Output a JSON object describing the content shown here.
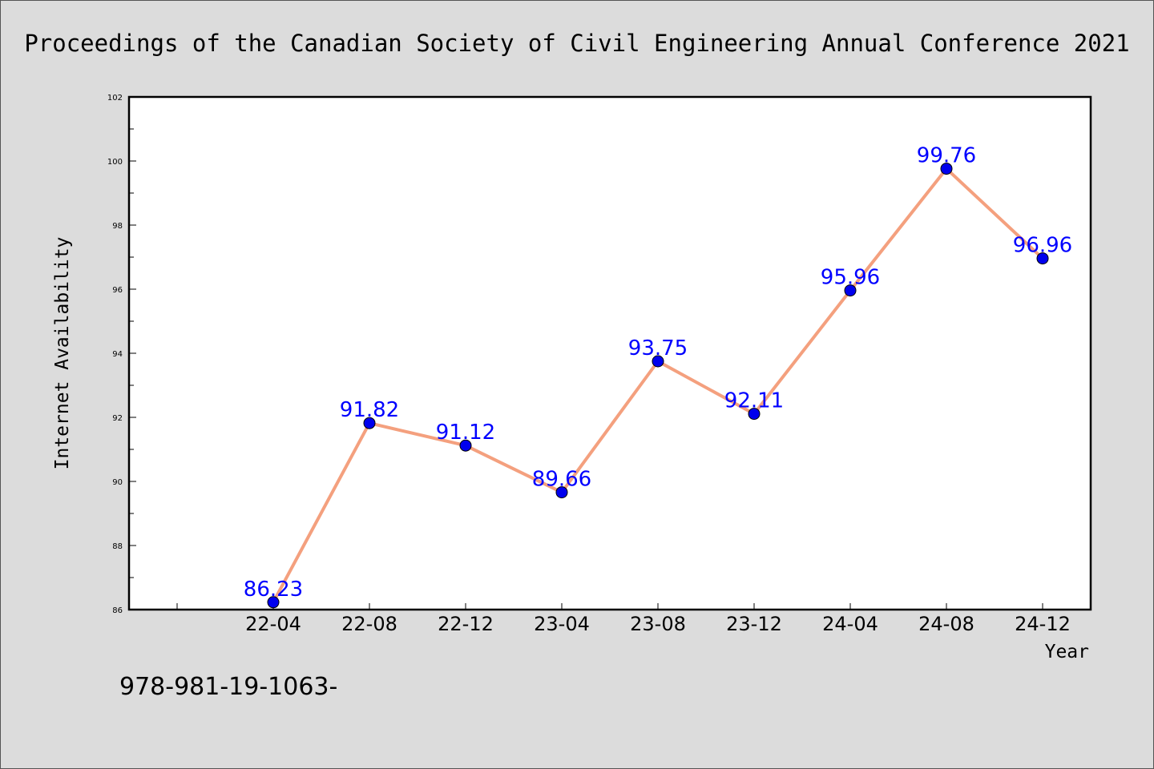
{
  "chart_data": {
    "type": "line",
    "title": "Proceedings of the Canadian Society of Civil Engineering Annual Conference 2021",
    "xlabel": "Year",
    "ylabel": "Internet Availability",
    "categories": [
      "22-04",
      "22-08",
      "22-12",
      "23-04",
      "23-08",
      "23-12",
      "24-04",
      "24-08",
      "24-12"
    ],
    "series": [
      {
        "values": [
          86.23,
          91.82,
          91.12,
          89.66,
          93.75,
          92.11,
          95.96,
          99.76,
          96.96
        ],
        "labels": [
          "86.23",
          "91.82",
          "91.12",
          "89.66",
          "93.75",
          "92.11",
          "95.96",
          "99.76",
          "96.96"
        ],
        "line_color": "#f4a07e",
        "marker_color": "#0000ee",
        "label_color": "#0000ff"
      }
    ],
    "ylim": [
      86,
      102
    ],
    "yticks": [
      86,
      88,
      90,
      92,
      94,
      96,
      98,
      100,
      102
    ],
    "ytick_labels": [
      "86",
      "88",
      "90",
      "92",
      "94",
      "96",
      "98",
      "100",
      "102"
    ],
    "grid": false,
    "legend": "none"
  },
  "footer": {
    "text": "978-981-19-1063-"
  },
  "colors": {
    "background": "#dcdcdc",
    "plot_background": "#ffffff",
    "axis": "#000000"
  }
}
